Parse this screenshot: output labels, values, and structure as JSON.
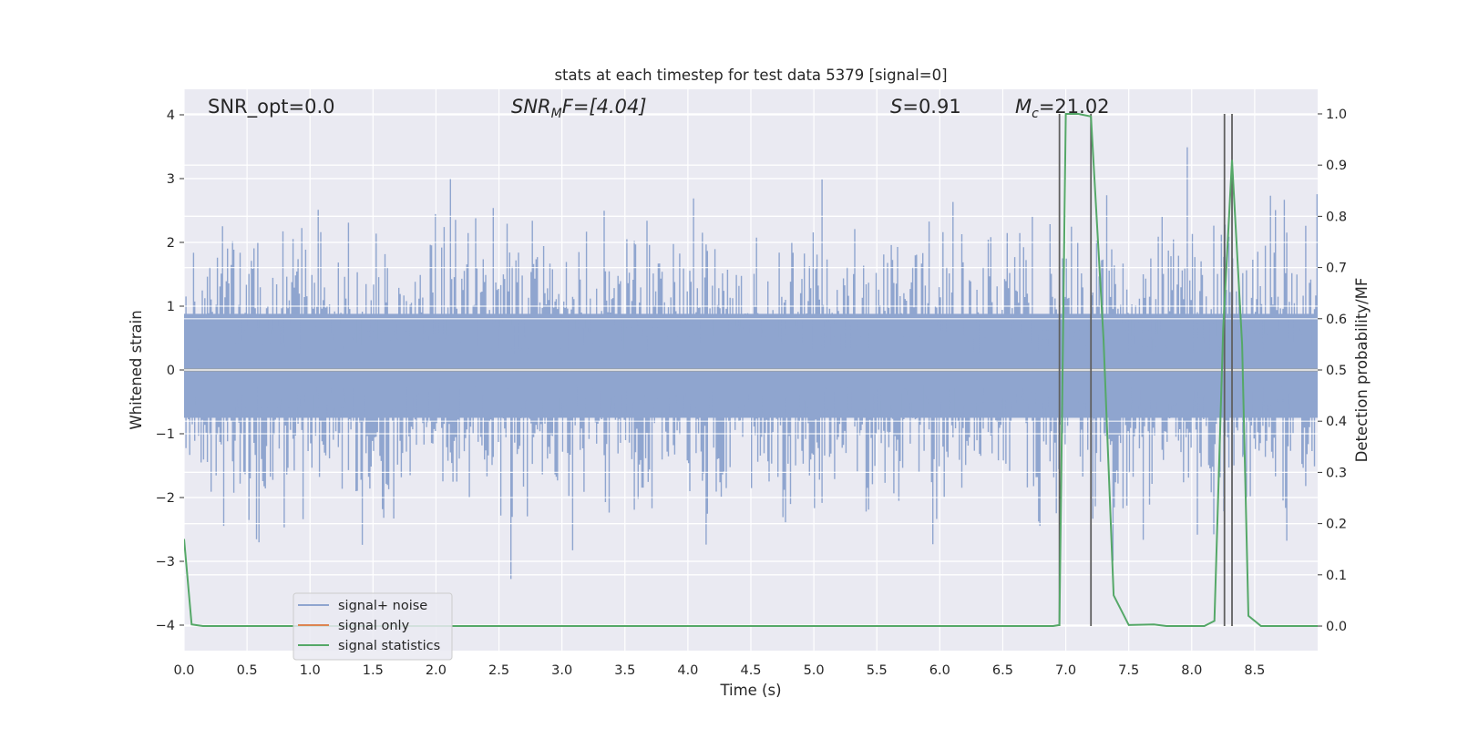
{
  "chart_data": {
    "type": "line",
    "title": "stats at each timestep for test data 5379 [signal=0]",
    "xlabel": "Time (s)",
    "ylabel_left": "Whitened strain",
    "ylabel_right": "Detection probability/MF",
    "xlim": [
      0.0,
      9.0
    ],
    "ylim_left": [
      -4.4,
      4.4
    ],
    "ylim_right": [
      -0.048,
      1.048
    ],
    "x_ticks": [
      "0.0",
      "0.5",
      "1.0",
      "1.5",
      "2.0",
      "2.5",
      "3.0",
      "3.5",
      "4.0",
      "4.5",
      "5.0",
      "5.5",
      "6.0",
      "6.5",
      "7.0",
      "7.5",
      "8.0",
      "8.5"
    ],
    "y_ticks_left": [
      "4",
      "3",
      "2",
      "1",
      "0",
      "−1",
      "−2",
      "−3",
      "−4"
    ],
    "y_ticks_right": [
      "1.0",
      "0.9",
      "0.8",
      "0.7",
      "0.6",
      "0.5",
      "0.4",
      "0.3",
      "0.2",
      "0.1",
      "0.0"
    ],
    "grid": true,
    "legend_position": "lower-left",
    "annotations": {
      "snr_opt": "SNR_opt=0.0",
      "snr_mf_main": "SNR",
      "snr_mf_sub": "M",
      "snr_mf_rest": "F=[4.04]",
      "s_main": "S",
      "s_rest": "=0.91",
      "mc_main": "M",
      "mc_sub": "c",
      "mc_rest": "=21.02"
    },
    "series": [
      {
        "name": "signal+ noise",
        "color": "#8fa5cf",
        "style": "noise band",
        "envelope_upper_typical": 1.6,
        "envelope_lower_typical": -1.5,
        "peak_max": 4.0,
        "peak_min": -3.5
      },
      {
        "name": "signal only",
        "color": "#dd8452",
        "values_note": "flat at 0",
        "y": 0.0
      },
      {
        "name": "signal statistics",
        "color": "#55a868",
        "axis": "right",
        "x": [
          0.0,
          0.06,
          0.15,
          0.5,
          1.0,
          2.0,
          3.0,
          4.0,
          5.0,
          6.0,
          6.5,
          6.9,
          6.95,
          7.0,
          7.1,
          7.2,
          7.3,
          7.38,
          7.5,
          7.7,
          7.8,
          8.1,
          8.18,
          8.25,
          8.32,
          8.4,
          8.45,
          8.55,
          9.0
        ],
        "y": [
          0.17,
          0.003,
          0.0,
          0.0,
          0.0,
          0.0,
          0.0,
          0.0,
          0.0,
          0.0,
          0.0,
          0.0,
          0.002,
          1.0,
          1.0,
          0.995,
          0.56,
          0.06,
          0.002,
          0.003,
          0.0,
          0.0,
          0.01,
          0.58,
          0.91,
          0.55,
          0.02,
          0.0,
          0.0
        ]
      }
    ],
    "threshold_markers_x": [
      6.95,
      7.2,
      8.26,
      8.32
    ],
    "threshold_color": "#606060"
  }
}
